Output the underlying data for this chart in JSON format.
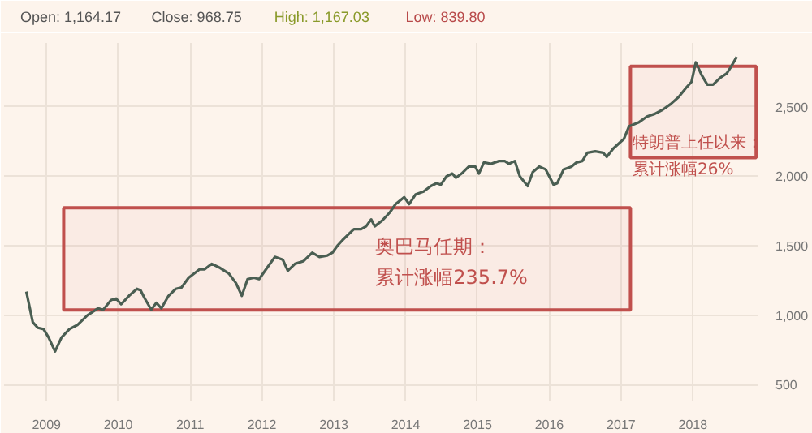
{
  "chart_data": {
    "type": "line",
    "annotations": [
      "Open: 1,164.17",
      "Close: 968.75",
      "High: 1,167.03",
      "Low: 839.80",
      "累计涨幅235.7%",
      "累计涨幅26%"
    ],
    "x": [
      2008.72,
      2008.81,
      2008.88,
      2008.96,
      2009.03,
      2009.12,
      2009.21,
      2009.32,
      2009.43,
      2009.57,
      2009.72,
      2009.79,
      2009.9,
      2009.97,
      2010.04,
      2010.15,
      2010.26,
      2010.31,
      2010.37,
      2010.46,
      2010.53,
      2010.6,
      2010.7,
      2010.8,
      2010.88,
      2010.98,
      2011.13,
      2011.2,
      2011.3,
      2011.42,
      2011.54,
      2011.64,
      2011.72,
      2011.8,
      2011.89,
      2011.96,
      2012.07,
      2012.18,
      2012.29,
      2012.36,
      2012.46,
      2012.58,
      2012.7,
      2012.8,
      2012.91,
      2012.98,
      2013.05,
      2013.12,
      2013.2,
      2013.28,
      2013.38,
      2013.45,
      2013.52,
      2013.57,
      2013.67,
      2013.78,
      2013.86,
      2013.98,
      2014.05,
      2014.14,
      2014.25,
      2014.35,
      2014.43,
      2014.49,
      2014.57,
      2014.65,
      2014.7,
      2014.78,
      2014.88,
      2014.97,
      2015.02,
      2015.09,
      2015.19,
      2015.3,
      2015.38,
      2015.44,
      2015.52,
      2015.59,
      2015.7,
      2015.77,
      2015.86,
      2015.95,
      2016.06,
      2016.11,
      2016.2,
      2016.31,
      2016.38,
      2016.46,
      2016.53,
      2016.64,
      2016.75,
      2016.8,
      2016.89,
      2017.04,
      2017.11,
      2017.25,
      2017.36,
      2017.47,
      2017.58,
      2017.69,
      2017.8,
      2017.91,
      2017.98,
      2018.04,
      2018.12,
      2018.2,
      2018.28,
      2018.38,
      2018.47,
      2018.52,
      2018.61
    ],
    "series": [
      {
        "color": "#4a5e52",
        "values": [
          1170,
          950,
          910,
          900,
          840,
          740,
          840,
          900,
          930,
          1000,
          1050,
          1040,
          1110,
          1120,
          1080,
          1140,
          1190,
          1180,
          1120,
          1040,
          1090,
          1050,
          1140,
          1190,
          1200,
          1270,
          1330,
          1330,
          1370,
          1340,
          1300,
          1230,
          1140,
          1260,
          1270,
          1260,
          1340,
          1420,
          1400,
          1320,
          1370,
          1390,
          1450,
          1420,
          1430,
          1450,
          1500,
          1540,
          1580,
          1620,
          1620,
          1640,
          1690,
          1640,
          1680,
          1740,
          1800,
          1850,
          1800,
          1870,
          1890,
          1930,
          1950,
          1940,
          2000,
          2020,
          1990,
          2020,
          2070,
          2070,
          2020,
          2100,
          2090,
          2110,
          2110,
          2090,
          2110,
          2000,
          1930,
          2030,
          2070,
          2050,
          1940,
          1950,
          2050,
          2070,
          2100,
          2110,
          2170,
          2180,
          2170,
          2140,
          2200,
          2270,
          2360,
          2390,
          2430,
          2450,
          2480,
          2520,
          2570,
          2640,
          2680,
          2820,
          2730,
          2660,
          2660,
          2710,
          2740,
          2780,
          2860
        ]
      }
    ],
    "xlim": [
      2008.41,
      2018.9
    ],
    "ylim": [
      380,
      2960
    ],
    "xticks": [
      {
        "value": 2009,
        "label": "2009"
      },
      {
        "value": 2010,
        "label": "2010"
      },
      {
        "value": 2011,
        "label": "2011"
      },
      {
        "value": 2012,
        "label": "2012"
      },
      {
        "value": 2013,
        "label": "2013"
      },
      {
        "value": 2014,
        "label": "2014"
      },
      {
        "value": 2015,
        "label": "2015"
      },
      {
        "value": 2016,
        "label": "2016"
      },
      {
        "value": 2017,
        "label": "2017"
      },
      {
        "value": 2018,
        "label": "2018"
      }
    ],
    "yticks": [
      500,
      {
        "value": 1000,
        "label": "1,000"
      },
      {
        "value": 1500,
        "label": "1,500"
      },
      {
        "value": 2000,
        "label": "2,000"
      },
      {
        "value": 2500,
        "label": "2,500"
      }
    ],
    "bands": [
      {
        "axis": "x",
        "from": 2009.24,
        "to": 2017.13,
        "label": "奥巴马任期：",
        "color": "#c0504d"
      },
      {
        "axis": "x",
        "from": 2017.13,
        "to": 2018.88,
        "label": "特朗普上任以来：",
        "color": "#c0504d"
      }
    ],
    "grid": true,
    "marker": "none",
    "line_style": "solid"
  }
}
